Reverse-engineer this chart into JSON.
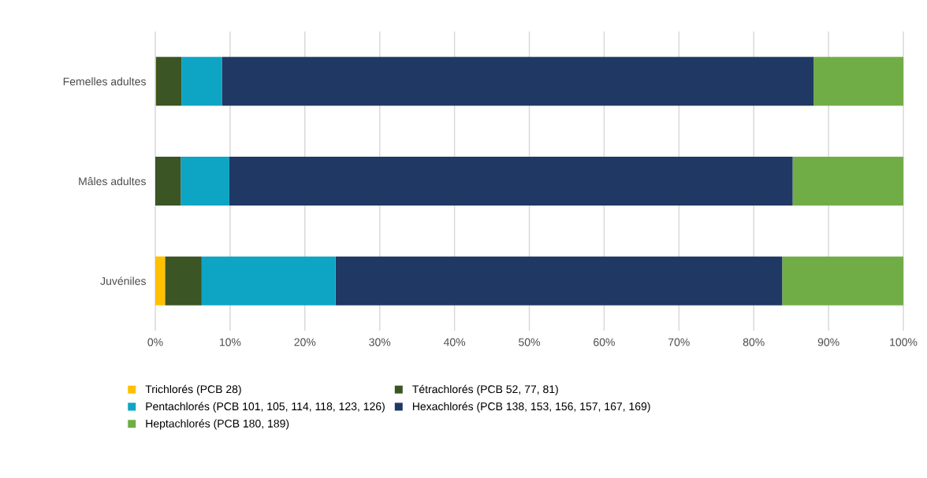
{
  "chart_data": {
    "type": "bar",
    "orientation": "horizontal",
    "stacked": true,
    "grid": "x",
    "legend": "bottom",
    "categories": [
      "Femelles adultes",
      "Mâles adultes",
      "Juvéniles"
    ],
    "xlim": [
      0,
      100
    ],
    "xticks": [
      {
        "value": 0,
        "label": "0%"
      },
      {
        "value": 10,
        "label": "10%"
      },
      {
        "value": 20,
        "label": "20%"
      },
      {
        "value": 30,
        "label": "30%"
      },
      {
        "value": 40,
        "label": "40%"
      },
      {
        "value": 50,
        "label": "50%"
      },
      {
        "value": 60,
        "label": "60%"
      },
      {
        "value": 70,
        "label": "70%"
      },
      {
        "value": 80,
        "label": "80%"
      },
      {
        "value": 90,
        "label": "90%"
      },
      {
        "value": 100,
        "label": "100%"
      }
    ],
    "series": [
      {
        "name": "Trichlorés (PCB 28)",
        "color": "#ffc000",
        "values": [
          0.1,
          0,
          1.3
        ]
      },
      {
        "name": "Tétrachlorés (PCB 52, 77, 81)",
        "color": "#3b5524",
        "values": [
          3.4,
          3.4,
          4.9
        ]
      },
      {
        "name": "Pentachlorés (PCB 101, 105, 114, 118, 123, 126)",
        "color": "#0ea5c4",
        "values": [
          5.4,
          6.5,
          17.9
        ]
      },
      {
        "name": "Hexachlorés (PCB 138, 153, 156, 157, 167, 169)",
        "color": "#203864",
        "values": [
          79.1,
          75.3,
          59.7
        ]
      },
      {
        "name": "Heptachlorés (PCB 180, 189)",
        "color": "#70ad47",
        "values": [
          12.0,
          14.8,
          16.2
        ]
      }
    ]
  }
}
